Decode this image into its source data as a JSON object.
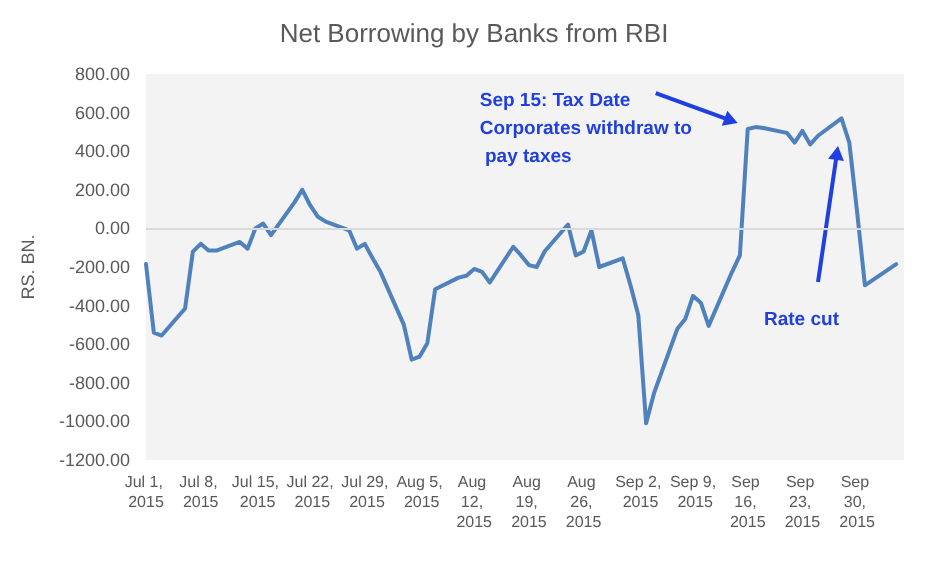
{
  "chart_data": {
    "type": "line",
    "title": "Net Borrowing by Banks from RBI",
    "ylabel": "RS. BN.",
    "x": [
      "2015-07-01",
      "2015-07-02",
      "2015-07-03",
      "2015-07-06",
      "2015-07-07",
      "2015-07-08",
      "2015-07-09",
      "2015-07-10",
      "2015-07-13",
      "2015-07-14",
      "2015-07-15",
      "2015-07-16",
      "2015-07-17",
      "2015-07-20",
      "2015-07-21",
      "2015-07-22",
      "2015-07-23",
      "2015-07-24",
      "2015-07-27",
      "2015-07-28",
      "2015-07-29",
      "2015-07-30",
      "2015-07-31",
      "2015-08-03",
      "2015-08-04",
      "2015-08-05",
      "2015-08-06",
      "2015-08-07",
      "2015-08-10",
      "2015-08-11",
      "2015-08-12",
      "2015-08-13",
      "2015-08-14",
      "2015-08-17",
      "2015-08-18",
      "2015-08-19",
      "2015-08-20",
      "2015-08-21",
      "2015-08-24",
      "2015-08-25",
      "2015-08-26",
      "2015-08-27",
      "2015-08-28",
      "2015-08-31",
      "2015-09-01",
      "2015-09-02",
      "2015-09-03",
      "2015-09-04",
      "2015-09-07",
      "2015-09-08",
      "2015-09-09",
      "2015-09-10",
      "2015-09-11",
      "2015-09-14",
      "2015-09-15",
      "2015-09-16",
      "2015-09-17",
      "2015-09-18",
      "2015-09-21",
      "2015-09-22",
      "2015-09-23",
      "2015-09-24",
      "2015-09-25",
      "2015-09-28",
      "2015-09-29",
      "2015-09-30",
      "2015-10-01",
      "2015-10-05"
    ],
    "series": [
      {
        "color": "#4f81bd",
        "values": [
          -185,
          -540,
          -555,
          -415,
          -120,
          -80,
          -115,
          -115,
          -70,
          -105,
          0,
          25,
          -35,
          135,
          200,
          120,
          60,
          35,
          -10,
          -105,
          -80,
          -155,
          -225,
          -500,
          -680,
          -665,
          -595,
          -315,
          -255,
          -245,
          -210,
          -225,
          -280,
          -95,
          -140,
          -190,
          -200,
          -120,
          20,
          -140,
          -120,
          -10,
          -200,
          -155,
          -295,
          -450,
          -1010,
          -855,
          -520,
          -470,
          -350,
          -385,
          -505,
          -225,
          -140,
          515,
          525,
          520,
          495,
          445,
          505,
          435,
          480,
          570,
          445,
          85,
          -295,
          -185
        ]
      }
    ],
    "xlim": [
      "2015-07-01",
      "2015-10-06"
    ],
    "xticks": [
      {
        "value": "2015-07-01",
        "label": "Jul 1, 2015"
      },
      {
        "value": "2015-07-08",
        "label": "Jul 8, 2015"
      },
      {
        "value": "2015-07-15",
        "label": "Jul 15, 2015"
      },
      {
        "value": "2015-07-22",
        "label": "Jul 22, 2015"
      },
      {
        "value": "2015-07-29",
        "label": "Jul 29, 2015"
      },
      {
        "value": "2015-08-05",
        "label": "Aug 5, 2015"
      },
      {
        "value": "2015-08-12",
        "label": "Aug 12, 2015"
      },
      {
        "value": "2015-08-19",
        "label": "Aug 19, 2015"
      },
      {
        "value": "2015-08-26",
        "label": "Aug 26, 2015"
      },
      {
        "value": "2015-09-02",
        "label": "Sep 2, 2015"
      },
      {
        "value": "2015-09-09",
        "label": "Sep 9, 2015"
      },
      {
        "value": "2015-09-16",
        "label": "Sep 16, 2015"
      },
      {
        "value": "2015-09-23",
        "label": "Sep 23, 2015"
      },
      {
        "value": "2015-09-30",
        "label": "Sep 30, 2015"
      }
    ],
    "ylim": [
      -1200,
      800
    ],
    "yticks": [
      {
        "value": -1200,
        "label": "-1200.00"
      },
      {
        "value": -1000,
        "label": "-1000.00"
      },
      {
        "value": -800,
        "label": "-800.00"
      },
      {
        "value": -600,
        "label": "-600.00"
      },
      {
        "value": -400,
        "label": "-400.00"
      },
      {
        "value": -200,
        "label": "-200.00"
      },
      {
        "value": 0,
        "label": "0.00"
      },
      {
        "value": 200,
        "label": "200.00"
      },
      {
        "value": 400,
        "label": "400.00"
      },
      {
        "value": 600,
        "label": "600.00"
      },
      {
        "value": 800,
        "label": "800.00"
      }
    ],
    "ref_lines": [
      {
        "axis": "y",
        "value": 0,
        "color": "#d9d9d9"
      }
    ],
    "annotations": [
      {
        "text": "Sep 15: Tax Date Corporates withdraw to pay taxes",
        "x": "2015-09-16",
        "y": 515
      },
      "Rate cut"
    ],
    "grid": false,
    "marker": "none",
    "line_style": "solid"
  }
}
